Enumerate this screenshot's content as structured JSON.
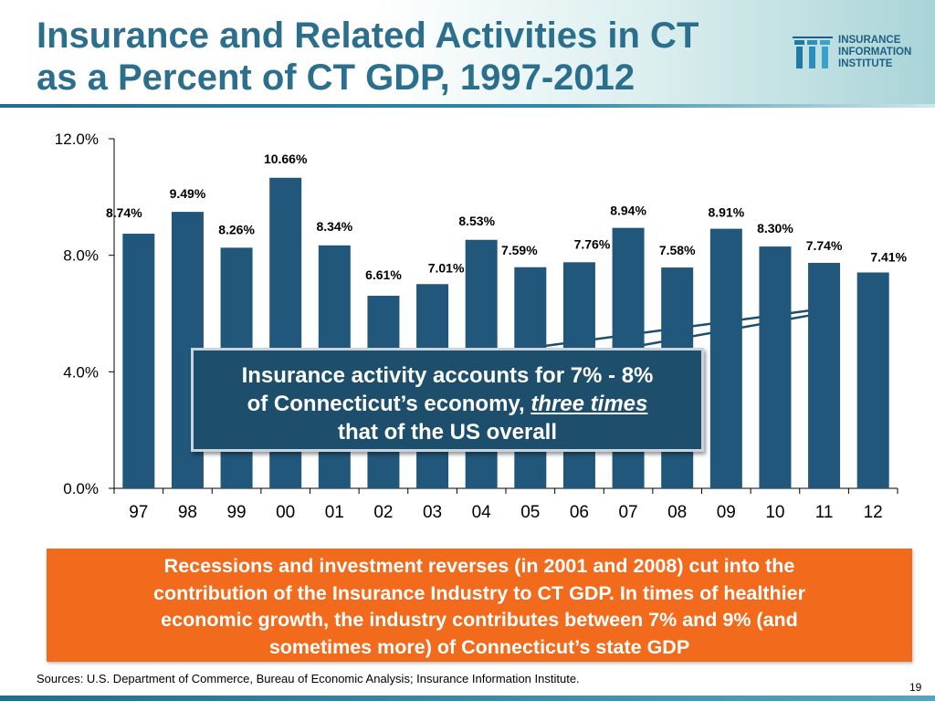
{
  "title": {
    "line1": "Insurance and Related Activities in CT",
    "line2": "as a Percent of CT GDP, 1997-2012"
  },
  "logo": {
    "line1": "INSURANCE",
    "line2": "INFORMATION",
    "line3": "INSTITUTE",
    "icon": "iii-logo-icon"
  },
  "colors": {
    "bar": "#21577a",
    "title": "#2b6f8c",
    "callout_bg": "#1d4e6c",
    "orange": "#f26a1b"
  },
  "chart_data": {
    "type": "bar",
    "title": "Insurance and Related Activities in CT as a Percent of CT GDP, 1997-2012",
    "xlabel": "",
    "ylabel": "",
    "categories": [
      "97",
      "98",
      "99",
      "00",
      "01",
      "02",
      "03",
      "04",
      "05",
      "06",
      "07",
      "08",
      "09",
      "10",
      "11",
      "12"
    ],
    "values": [
      8.74,
      9.49,
      8.26,
      10.66,
      8.34,
      6.61,
      7.01,
      8.53,
      7.59,
      7.76,
      8.94,
      7.58,
      8.91,
      8.3,
      7.74,
      7.41
    ],
    "labels": [
      "8.74%",
      "9.49%",
      "8.26%",
      "10.66%",
      "8.34%",
      "6.61%",
      "7.01%",
      "8.53%",
      "7.59%",
      "7.76%",
      "8.94%",
      "7.58%",
      "8.91%",
      "8.30%",
      "7.74%",
      "7.41%"
    ],
    "yticks": [
      0,
      4,
      8,
      12
    ],
    "ytick_labels": [
      "0.0%",
      "4.0%",
      "8.0%",
      "12.0%"
    ],
    "ylim": [
      0,
      12
    ],
    "grid": false,
    "legend": "none"
  },
  "callout": {
    "line1": "Insurance activity accounts for 7% - 8%",
    "line2_pre": "of Connecticut’s economy,",
    "line2_emph": "three times",
    "line3": "that of the US overall"
  },
  "note": {
    "line1": "Recessions and investment reverses (in 2001 and 2008) cut into the",
    "line2": "contribution of the Insurance Industry to CT GDP. In times of healthier",
    "line3": "economic growth, the industry contributes between 7% and 9% (and",
    "line4": "sometimes more) of Connecticut’s state GDP"
  },
  "sources": "Sources: U.S. Department of Commerce, Bureau of Economic Analysis; Insurance Information Institute.",
  "page_number": "19"
}
